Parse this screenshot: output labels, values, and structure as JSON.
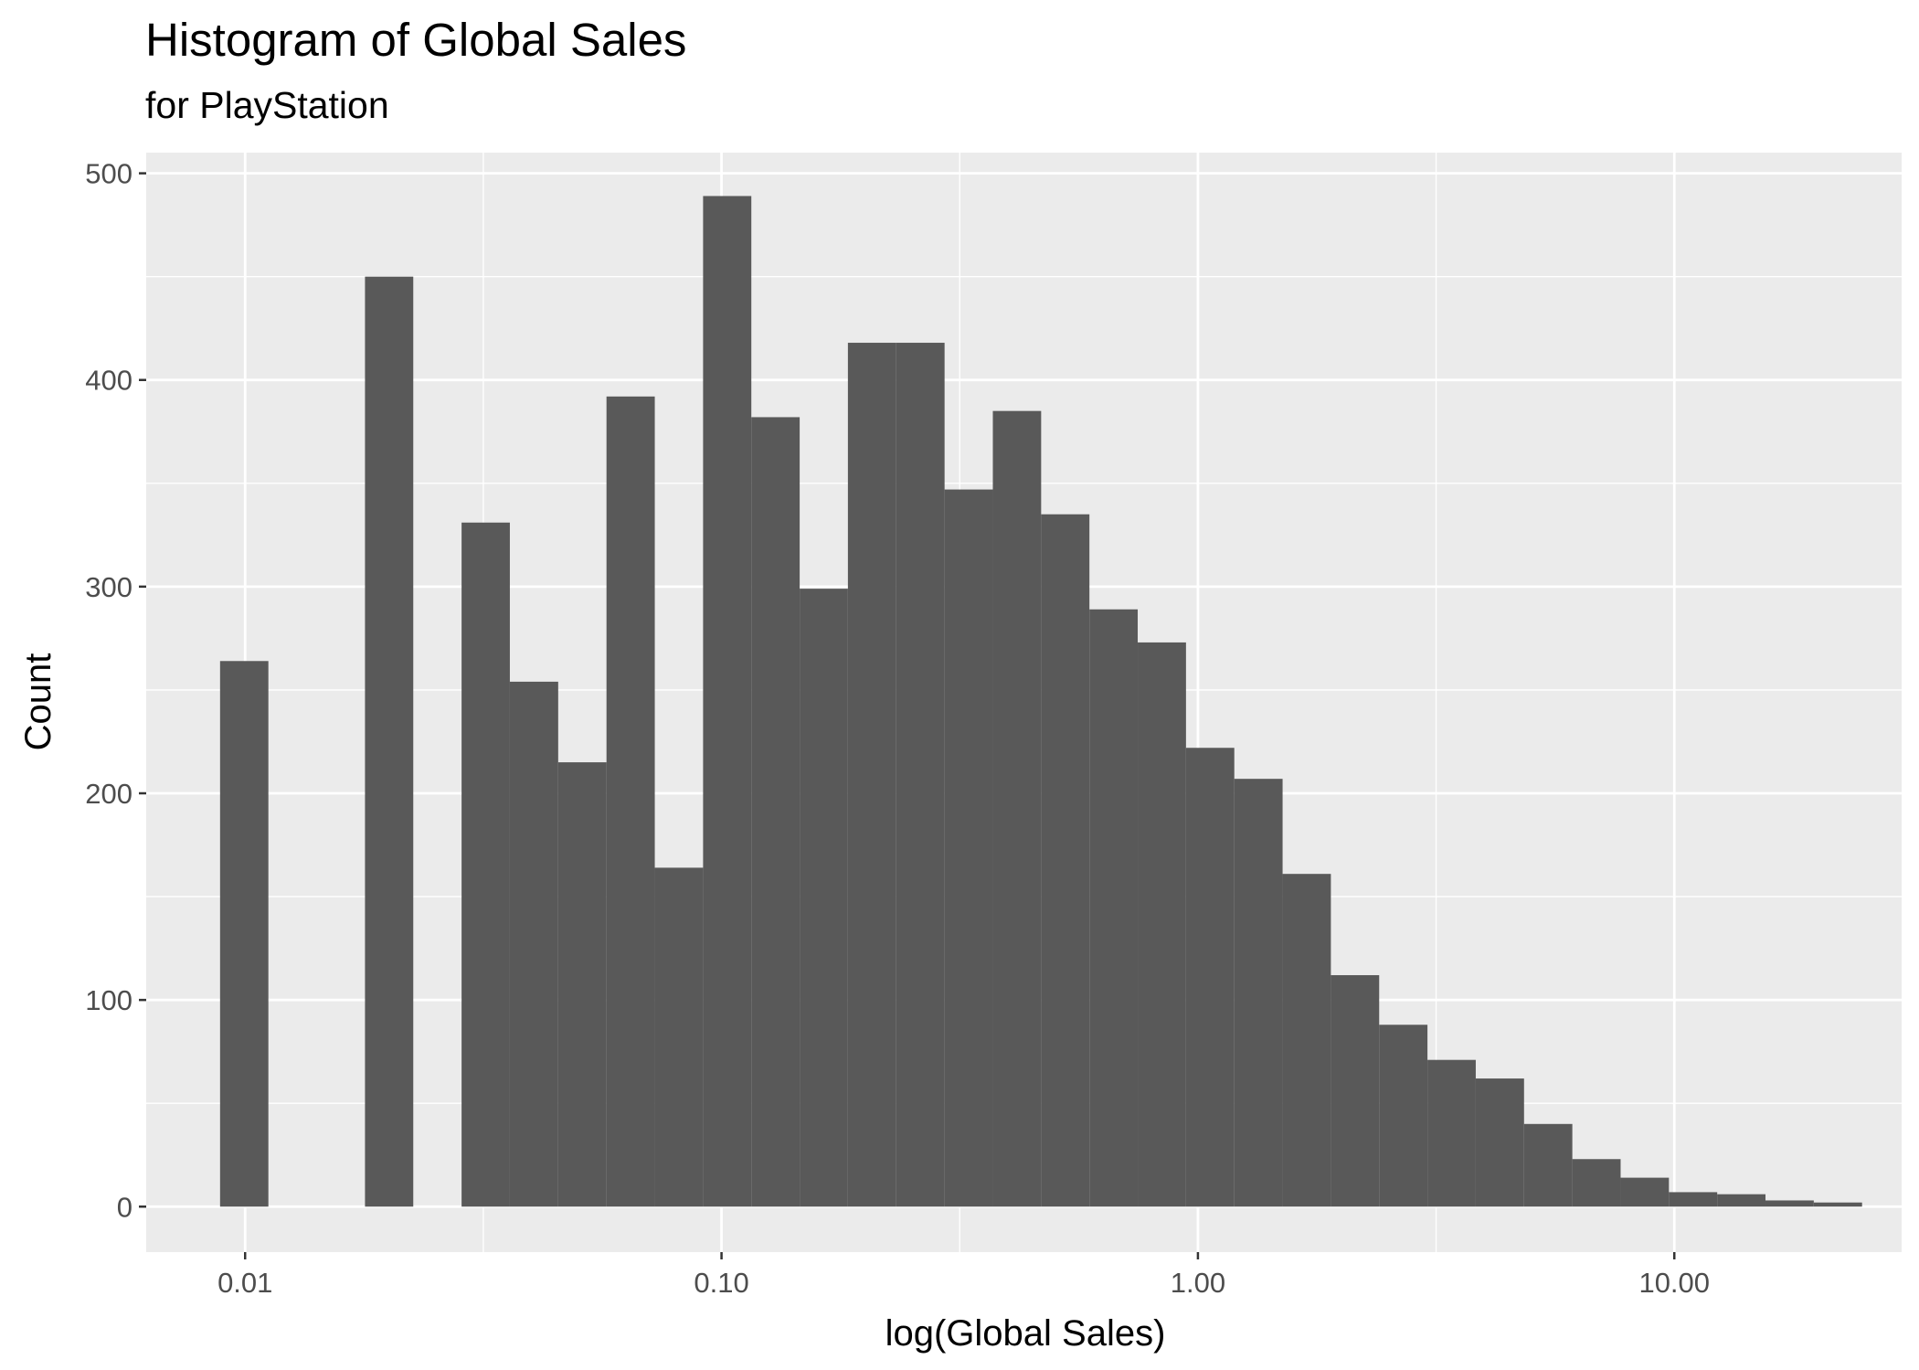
{
  "chart_data": {
    "type": "bar",
    "title": "Histogram of Global Sales",
    "subtitle": "for PlayStation",
    "xlabel": "log(Global Sales)",
    "ylabel": "Count",
    "x_scale": "log10",
    "xlim": [
      0.0062,
      30
    ],
    "ylim": [
      -22,
      510
    ],
    "x_ticks": [
      {
        "value": 0.01,
        "label": "0.01"
      },
      {
        "value": 0.1,
        "label": "0.10"
      },
      {
        "value": 1,
        "label": "1.00"
      },
      {
        "value": 10,
        "label": "10.00"
      }
    ],
    "y_ticks": [
      {
        "value": 0,
        "label": "0"
      },
      {
        "value": 100,
        "label": "100"
      },
      {
        "value": 200,
        "label": "200"
      },
      {
        "value": 300,
        "label": "300"
      },
      {
        "value": 400,
        "label": "400"
      },
      {
        "value": 500,
        "label": "500"
      }
    ],
    "bins": [
      {
        "x0": 0.00886,
        "x1": 0.01119,
        "count": 264
      },
      {
        "x0": 0.01119,
        "x1": 0.01413,
        "count": 0
      },
      {
        "x0": 0.01413,
        "x1": 0.01785,
        "count": 0
      },
      {
        "x0": 0.01785,
        "x1": 0.02254,
        "count": 450
      },
      {
        "x0": 0.02254,
        "x1": 0.02847,
        "count": 0
      },
      {
        "x0": 0.02847,
        "x1": 0.03595,
        "count": 331
      },
      {
        "x0": 0.03595,
        "x1": 0.04541,
        "count": 254
      },
      {
        "x0": 0.04541,
        "x1": 0.05735,
        "count": 215
      },
      {
        "x0": 0.05735,
        "x1": 0.07243,
        "count": 392
      },
      {
        "x0": 0.07243,
        "x1": 0.09147,
        "count": 164
      },
      {
        "x0": 0.09147,
        "x1": 0.1155,
        "count": 489
      },
      {
        "x0": 0.1155,
        "x1": 0.1459,
        "count": 382
      },
      {
        "x0": 0.1459,
        "x1": 0.1842,
        "count": 299
      },
      {
        "x0": 0.1842,
        "x1": 0.2327,
        "count": 418
      },
      {
        "x0": 0.2327,
        "x1": 0.2939,
        "count": 418
      },
      {
        "x0": 0.2939,
        "x1": 0.3711,
        "count": 347
      },
      {
        "x0": 0.3711,
        "x1": 0.4687,
        "count": 385
      },
      {
        "x0": 0.4687,
        "x1": 0.5919,
        "count": 335
      },
      {
        "x0": 0.5919,
        "x1": 0.7475,
        "count": 289
      },
      {
        "x0": 0.7475,
        "x1": 0.944,
        "count": 273
      },
      {
        "x0": 0.944,
        "x1": 1.1922,
        "count": 222
      },
      {
        "x0": 1.1922,
        "x1": 1.5056,
        "count": 207
      },
      {
        "x0": 1.5056,
        "x1": 1.9014,
        "count": 161
      },
      {
        "x0": 1.9014,
        "x1": 2.4012,
        "count": 112
      },
      {
        "x0": 2.4012,
        "x1": 3.0325,
        "count": 88
      },
      {
        "x0": 3.0325,
        "x1": 3.8297,
        "count": 71
      },
      {
        "x0": 3.8297,
        "x1": 4.8364,
        "count": 62
      },
      {
        "x0": 4.8364,
        "x1": 6.1078,
        "count": 40
      },
      {
        "x0": 6.1078,
        "x1": 7.7134,
        "count": 23
      },
      {
        "x0": 7.7134,
        "x1": 9.741,
        "count": 14
      },
      {
        "x0": 9.741,
        "x1": 12.302,
        "count": 7
      },
      {
        "x0": 12.302,
        "x1": 15.536,
        "count": 6
      },
      {
        "x0": 15.536,
        "x1": 19.62,
        "count": 3
      },
      {
        "x0": 19.62,
        "x1": 24.777,
        "count": 2
      }
    ],
    "colors": {
      "bar_fill": "#595959",
      "panel_background": "#ebebeb",
      "grid_line": "#ffffff",
      "tick_text": "#4d4d4d",
      "tick_mark": "#333333"
    },
    "grid": true,
    "legend": "none"
  }
}
